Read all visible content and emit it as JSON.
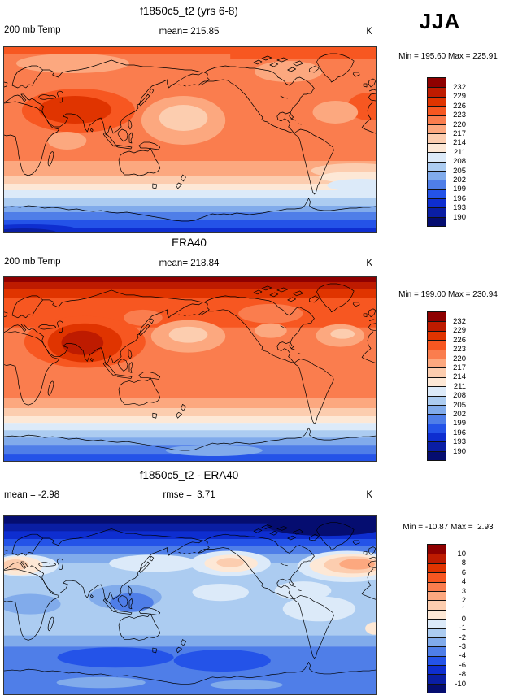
{
  "season": "JJA",
  "variable": "200 mb Temp",
  "units": "K",
  "panels": [
    {
      "title": "f1850c5_t2 (yrs 6-8)",
      "left_label": "200 mb Temp",
      "center_label": "mean= 215.85",
      "right_label": "K",
      "minmax": "Min = 195.60 Max = 225.91"
    },
    {
      "title": "ERA40",
      "left_label": "200 mb Temp",
      "center_label": "mean= 218.84",
      "right_label": "K",
      "minmax": "Min = 199.00 Max = 230.94"
    },
    {
      "title": "f1850c5_t2 - ERA40",
      "left_label": "mean = -2.98",
      "center_label": "rmse =  3.71",
      "right_label": "K",
      "minmax": "Min = -10.87 Max =  2.93"
    }
  ],
  "palette": [
    "#8E0000",
    "#BE1B00",
    "#E03400",
    "#F75721",
    "#FA7D4E",
    "#FCA87F",
    "#FCCDAF",
    "#FDE8D6",
    "#DCEAF9",
    "#ACCCF1",
    "#81ABEB",
    "#4F7EE8",
    "#2453E8",
    "#0E2ED0",
    "#0A1EA4",
    "#050D70"
  ],
  "colorbar_labels_absolute": [
    "232",
    "229",
    "226",
    "223",
    "220",
    "217",
    "214",
    "211",
    "208",
    "205",
    "202",
    "199",
    "196",
    "193",
    "190"
  ],
  "colorbar_labels_difference": [
    "10",
    "8",
    "6",
    "4",
    "3",
    "2",
    "1",
    "0",
    "-1",
    "-2",
    "-3",
    "-4",
    "-6",
    "-8",
    "-10"
  ],
  "chart_data": [
    {
      "type": "heatmap",
      "subtype": "filled-contour-world-map",
      "title": "f1850c5_t2 (yrs 6-8)",
      "field": "200 mb Temp",
      "season": "JJA",
      "units": "K",
      "mean": 215.85,
      "min": 195.6,
      "max": 225.91,
      "contour_levels": [
        190,
        193,
        196,
        199,
        202,
        205,
        208,
        211,
        214,
        217,
        220,
        223,
        226,
        229,
        232
      ],
      "projection": "cylindrical equidistant, Pacific-centered",
      "legend_position": "right"
    },
    {
      "type": "heatmap",
      "subtype": "filled-contour-world-map",
      "title": "ERA40",
      "field": "200 mb Temp",
      "season": "JJA",
      "units": "K",
      "mean": 218.84,
      "min": 199.0,
      "max": 230.94,
      "contour_levels": [
        190,
        193,
        196,
        199,
        202,
        205,
        208,
        211,
        214,
        217,
        220,
        223,
        226,
        229,
        232
      ],
      "projection": "cylindrical equidistant, Pacific-centered",
      "legend_position": "right"
    },
    {
      "type": "heatmap",
      "subtype": "filled-contour-world-map",
      "title": "f1850c5_t2 - ERA40",
      "field": "200 mb Temp difference",
      "season": "JJA",
      "units": "K",
      "mean": -2.98,
      "rmse": 3.71,
      "min": -10.87,
      "max": 2.93,
      "contour_levels": [
        -10,
        -8,
        -6,
        -4,
        -3,
        -2,
        -1,
        0,
        1,
        2,
        3,
        4,
        6,
        8,
        10
      ],
      "projection": "cylindrical equidistant, Pacific-centered",
      "legend_position": "right"
    }
  ]
}
